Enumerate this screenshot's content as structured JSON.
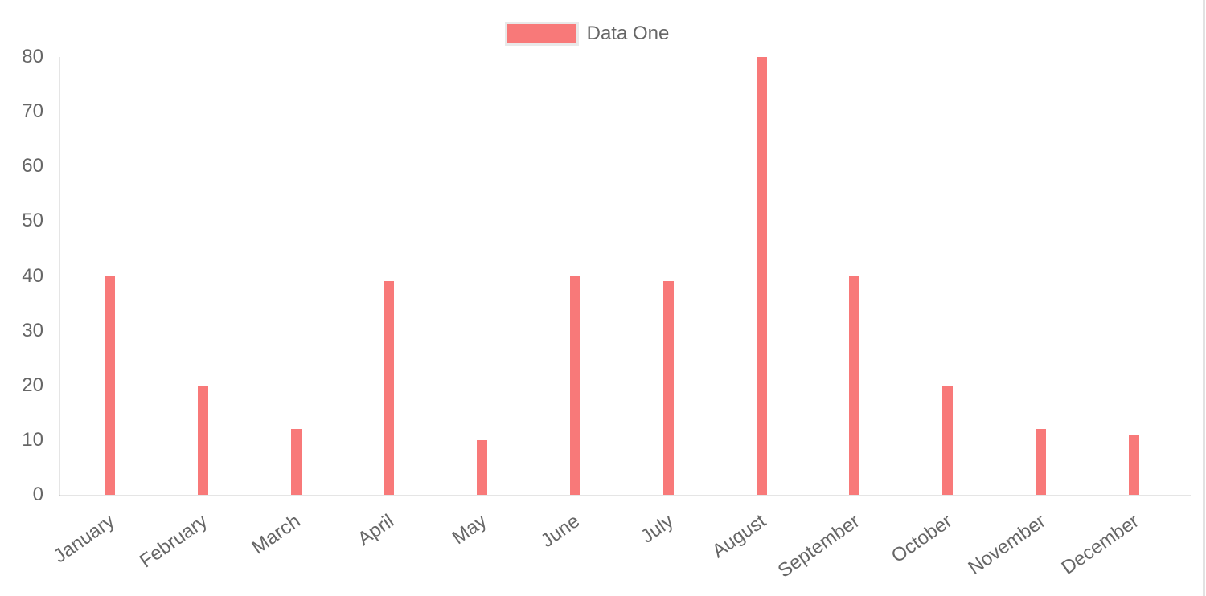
{
  "chart_data": {
    "type": "bar",
    "title": "",
    "categories": [
      "January",
      "February",
      "March",
      "April",
      "May",
      "June",
      "July",
      "August",
      "September",
      "October",
      "November",
      "December"
    ],
    "series": [
      {
        "name": "Data One",
        "color": "#f87979",
        "values": [
          40,
          20,
          12,
          39,
          10,
          40,
          39,
          80,
          40,
          20,
          12,
          11
        ]
      }
    ],
    "xlabel": "",
    "ylabel": "",
    "ylim": [
      0,
      80
    ],
    "y_ticks": [
      0,
      10,
      20,
      30,
      40,
      50,
      60,
      70,
      80
    ],
    "grid": false,
    "legend_position": "top-center",
    "x_tick_rotation_deg": -35,
    "axis_text_color": "#666666",
    "axis_line_color": "rgba(0,0,0,0.1)"
  },
  "legend": {
    "items": [
      {
        "label": "Data One",
        "swatch_color": "#f87979",
        "swatch_border_color": "#e9e9e9"
      }
    ]
  }
}
